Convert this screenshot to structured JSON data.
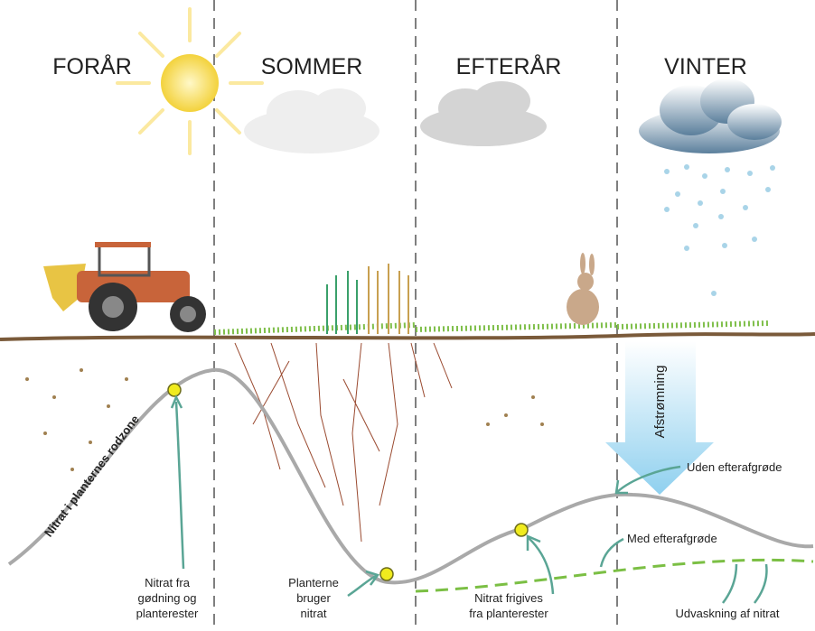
{
  "seasons": [
    "FORÅR",
    "SOMMER",
    "EFTERÅR",
    "VINTER"
  ],
  "axis_label": "Nitrat i planternes rodzone",
  "labels": {
    "fertilizer": [
      "Nitrat fra",
      "gødning og",
      "planterester"
    ],
    "uptake": [
      "Planterne",
      "bruger",
      "nitrat"
    ],
    "release": [
      "Nitrat frigives",
      "fra planterester"
    ],
    "runoff": "Afstrømning",
    "without_catch_crop": "Uden efterafgrøde",
    "with_catch_crop": "Med efterafgrøde",
    "leaching": "Udvaskning af nitrat"
  }
}
